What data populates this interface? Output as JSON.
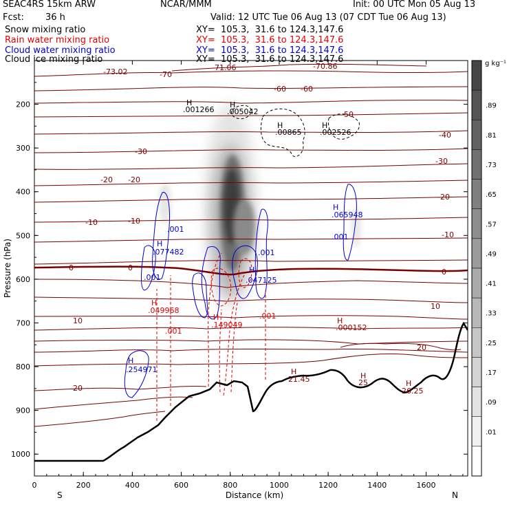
{
  "header": {
    "model": "SEAC4RS 15km ARW",
    "center": "NCAR/MMM",
    "init": "Init: 00 UTC Mon 05 Aug 13",
    "fcst_label": "Fcst:",
    "fcst_value": "36 h",
    "valid": "Valid: 12 UTC Tue 06 Aug 13 (07 CDT Tue 06 Aug 13)",
    "fields": [
      {
        "name": "Snow mixing ratio",
        "xy": "XY=  105.3,  31.6 to 124.3,147.6",
        "color": "#000000"
      },
      {
        "name": "Rain water mixing ratio",
        "xy": "XY=  105.3,  31.6 to 124.3,147.6",
        "color": "#e00000"
      },
      {
        "name": "Cloud water mixing ratio",
        "xy": "XY=  105.3,  31.6 to 124.3,147.6",
        "color": "#0000d0"
      },
      {
        "name": "Cloud ice mixing ratio",
        "xy": "XY=  105.3,  31.6 to 124.3,147.6",
        "color": "#000000"
      }
    ]
  },
  "chart_data": {
    "type": "heatmap",
    "xlabel": "Distance (km)",
    "ylabel": "Pressure (hPa)",
    "xlim": [
      0,
      1770
    ],
    "ylim": [
      1050,
      100
    ],
    "x_ticks": [
      "0",
      "200",
      "400",
      "600",
      "800",
      "1000",
      "1200",
      "1400",
      "1600"
    ],
    "y_ticks": [
      "200",
      "300",
      "400",
      "500",
      "600",
      "700",
      "800",
      "900",
      "1000"
    ],
    "x_end_labels": {
      "left": "S",
      "right": "N"
    },
    "colorbar": {
      "unit": "g kg⁻¹",
      "levels": [
        ".01",
        ".09",
        ".17",
        ".25",
        ".33",
        ".41",
        ".49",
        ".57",
        ".65",
        ".73",
        ".81",
        ".89"
      ]
    },
    "temperature_contour_labels": [
      "-73.02",
      "-70",
      "-71.06",
      "-70.86",
      "-60",
      "-60",
      "-50",
      "-40",
      "-30",
      "-30",
      "-20",
      "-20",
      "-20",
      "-10",
      "-10",
      "-10",
      "0",
      "0",
      "0",
      "10",
      "10",
      "20",
      "20"
    ],
    "extrema_labels": [
      {
        "text": ".001266",
        "color": "#000000"
      },
      {
        "text": ".005042",
        "color": "#000000"
      },
      {
        "text": ".00865",
        "color": "#000000"
      },
      {
        "text": ".002526",
        "color": "#000000"
      },
      {
        "text": ".001",
        "color": "#0000d0"
      },
      {
        "text": ".077482",
        "color": "#0000d0"
      },
      {
        "text": ".001",
        "color": "#0000d0"
      },
      {
        "text": ".001",
        "color": "#0000d0"
      },
      {
        "text": ".047125",
        "color": "#0000d0"
      },
      {
        "text": ".065948",
        "color": "#0000d0"
      },
      {
        "text": ".001",
        "color": "#0000d0"
      },
      {
        "text": ".254971",
        "color": "#0000d0"
      },
      {
        "text": ".049968",
        "color": "#e00000"
      },
      {
        "text": ".001",
        "color": "#e00000"
      },
      {
        "text": ".149049",
        "color": "#e00000"
      },
      {
        "text": ".001",
        "color": "#e00000"
      },
      {
        "text": ".000152",
        "color": "#a00000"
      },
      {
        "text": "21.45",
        "color": "#800000"
      },
      {
        "text": "25",
        "color": "#800000"
      },
      {
        "text": "26.25",
        "color": "#800000"
      }
    ]
  }
}
